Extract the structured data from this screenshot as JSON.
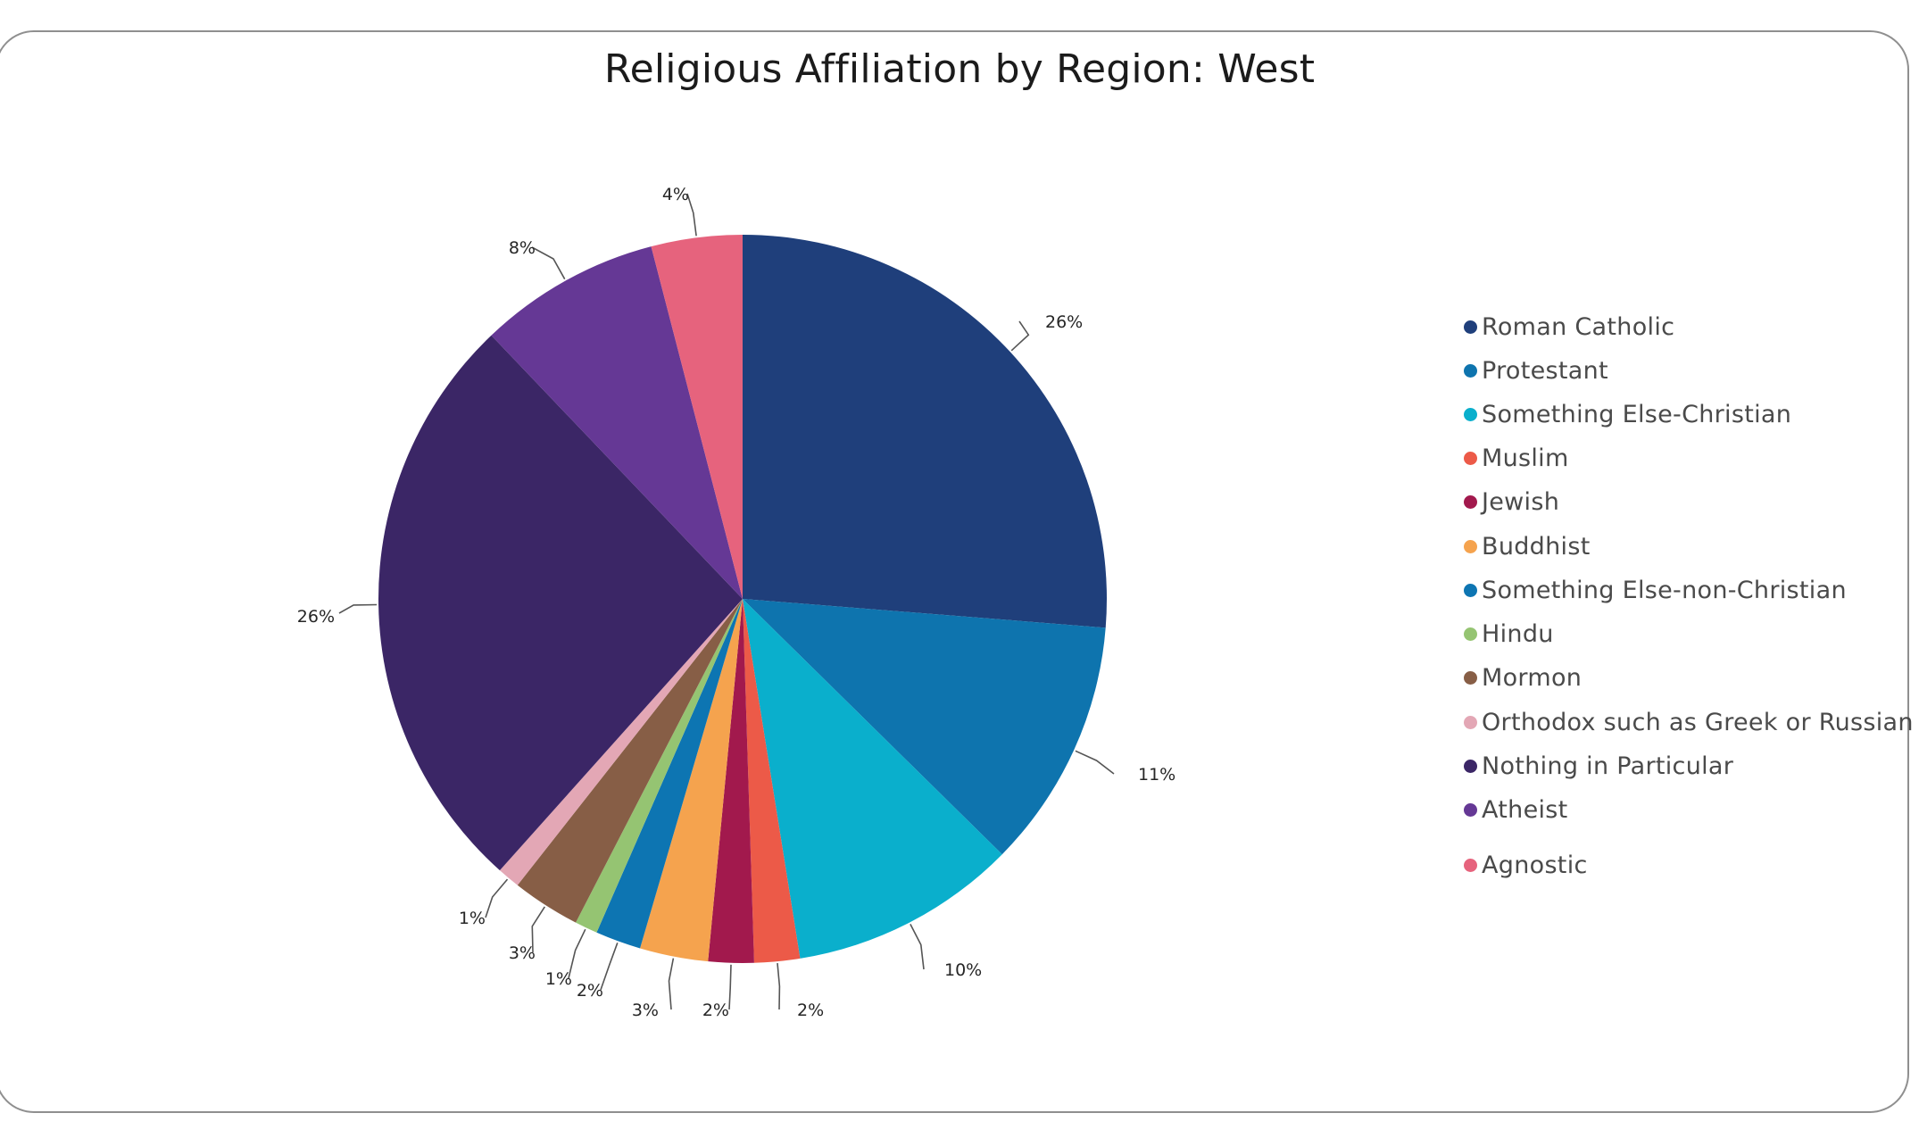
{
  "chart_data": {
    "type": "pie",
    "title": "Religious Affiliation by Region: West",
    "slices": [
      {
        "name": "Roman Catholic",
        "value": 26,
        "label": "26%",
        "color": "#1f3f7b"
      },
      {
        "name": "Protestant",
        "value": 11,
        "label": "11%",
        "color": "#0e74ae"
      },
      {
        "name": "Something Else-Christian",
        "value": 10,
        "label": "10%",
        "color": "#0aafcc"
      },
      {
        "name": "Muslim",
        "value": 2,
        "label": "2%",
        "color": "#ec5a48"
      },
      {
        "name": "Jewish",
        "value": 2,
        "label": "2%",
        "color": "#a2194d"
      },
      {
        "name": "Buddhist",
        "value": 3,
        "label": "3%",
        "color": "#f5a34e"
      },
      {
        "name": "Something Else-non-Christian",
        "value": 2,
        "label": "2%",
        "color": "#0d75b2"
      },
      {
        "name": "Hindu",
        "value": 1,
        "label": "1%",
        "color": "#95c472"
      },
      {
        "name": "Mormon",
        "value": 3,
        "label": "3%",
        "color": "#875e46"
      },
      {
        "name": "Orthodox such as Greek or Russian",
        "value": 1,
        "label": "1%",
        "color": "#e3a7b5"
      },
      {
        "name": "Nothing in Particular",
        "value": 26,
        "label": "26%",
        "color": "#3b2666"
      },
      {
        "name": "Atheist",
        "value": 8,
        "label": "8%",
        "color": "#653895"
      },
      {
        "name": "Agnostic",
        "value": 4,
        "label": "4%",
        "color": "#e6637d"
      }
    ],
    "legend_position": "right"
  }
}
